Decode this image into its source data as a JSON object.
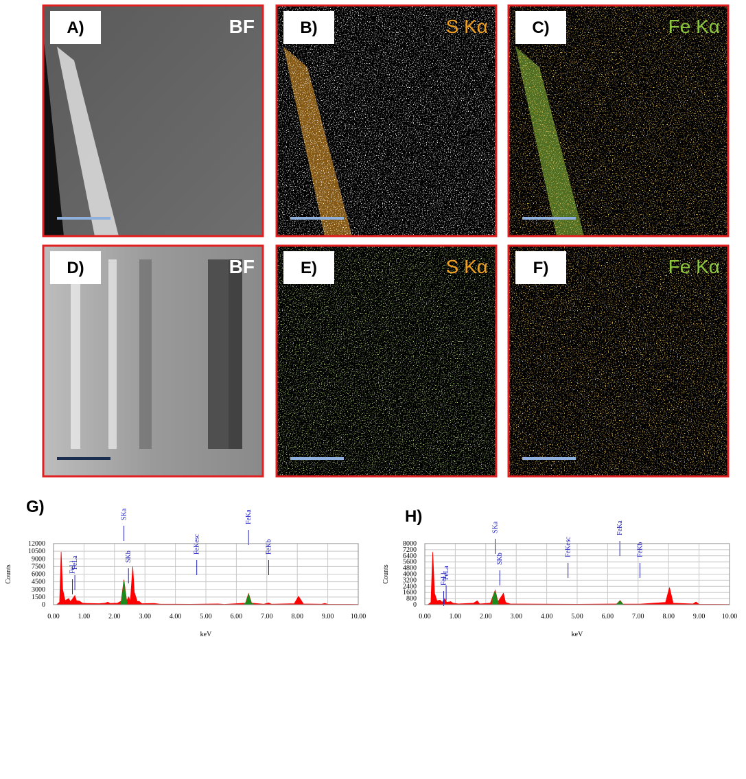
{
  "panels": [
    {
      "label": "A)",
      "channel": "BF",
      "color": "#ffffff"
    },
    {
      "label": "B)",
      "channel": "S Kα",
      "color": "#f0a020"
    },
    {
      "label": "C)",
      "channel": "Fe Kα",
      "color": "#8cc63f"
    },
    {
      "label": "D)",
      "channel": "BF",
      "color": "#ffffff"
    },
    {
      "label": "E)",
      "channel": "S Kα",
      "color": "#f0a020"
    },
    {
      "label": "F)",
      "channel": "Fe Kα",
      "color": "#8cc63f"
    }
  ],
  "chart_data": [
    {
      "type": "area",
      "title": "G)",
      "x_label": "keV",
      "y_label": "Counts",
      "x": [
        0.1,
        0.2,
        0.25,
        0.3,
        0.38,
        0.5,
        0.55,
        0.62,
        0.7,
        0.75,
        0.85,
        0.95,
        1.1,
        1.5,
        1.7,
        1.78,
        1.85,
        2.1,
        2.22,
        2.31,
        2.4,
        2.47,
        2.52,
        2.6,
        2.65,
        2.75,
        2.8,
        2.9,
        3.3,
        3.5,
        4.5,
        5.4,
        5.6,
        6.3,
        6.4,
        6.5,
        6.9,
        7.06,
        7.15,
        7.9,
        8.04,
        8.2,
        8.8,
        8.9,
        9.0,
        10
      ],
      "values": [
        0,
        500,
        10400,
        3000,
        800,
        1200,
        600,
        1100,
        1800,
        800,
        700,
        300,
        250,
        200,
        300,
        500,
        250,
        300,
        700,
        4900,
        800,
        1500,
        600,
        7500,
        2500,
        600,
        700,
        200,
        250,
        100,
        80,
        150,
        60,
        300,
        2200,
        300,
        100,
        350,
        100,
        200,
        1650,
        150,
        100,
        250,
        80,
        50
      ],
      "color": "#ff0000",
      "highlight_color": "#1a8a1a",
      "highlights": [
        [
          2.2,
          2.42
        ],
        [
          6.25,
          6.55
        ]
      ],
      "peak_labels": [
        {
          "label": "FeLl",
          "x": 0.62
        },
        {
          "label": "FeLa",
          "x": 0.7
        },
        {
          "label": "SKa",
          "x": 2.31
        },
        {
          "label": "SKb",
          "x": 2.46
        },
        {
          "label": "FeKesc",
          "x": 4.7
        },
        {
          "label": "FeKa",
          "x": 6.4
        },
        {
          "label": "FeKb",
          "x": 7.06
        }
      ],
      "xlim": [
        0,
        10
      ],
      "ylim": [
        0,
        12000
      ],
      "xticks": [
        {
          "value": 0,
          "label": "0.00"
        },
        {
          "value": 1,
          "label": "1.00"
        },
        {
          "value": 2,
          "label": "2.00"
        },
        {
          "value": 3,
          "label": "3.00"
        },
        {
          "value": 4,
          "label": "4.00"
        },
        {
          "value": 5,
          "label": "5.00"
        },
        {
          "value": 6,
          "label": "6.00"
        },
        {
          "value": 7,
          "label": "7.00"
        },
        {
          "value": 8,
          "label": "8.00"
        },
        {
          "value": 9,
          "label": "9.00"
        },
        {
          "value": 10,
          "label": "10.00"
        }
      ],
      "yticks": [
        0,
        1500,
        3000,
        4500,
        6000,
        7500,
        9000,
        10500,
        12000
      ],
      "grid": true
    },
    {
      "type": "area",
      "title": "H)",
      "x_label": "keV",
      "y_label": "Counts",
      "x": [
        0.1,
        0.2,
        0.26,
        0.32,
        0.4,
        0.5,
        0.57,
        0.65,
        0.72,
        0.85,
        0.92,
        1.1,
        1.6,
        1.72,
        1.8,
        2.15,
        2.31,
        2.4,
        2.47,
        2.58,
        2.65,
        2.8,
        5,
        6.3,
        6.41,
        6.5,
        7.06,
        7.9,
        8.03,
        8.15,
        8.8,
        8.9,
        9.0,
        10
      ],
      "values": [
        0,
        300,
        6900,
        1500,
        500,
        600,
        300,
        800,
        300,
        400,
        200,
        100,
        200,
        500,
        100,
        200,
        1900,
        400,
        800,
        1500,
        300,
        100,
        50,
        100,
        550,
        80,
        80,
        300,
        2250,
        200,
        100,
        350,
        50,
        30
      ],
      "color": "#ff0000",
      "highlight_color": "#1a8a1a",
      "highlights": [
        [
          2.2,
          2.42
        ],
        [
          6.28,
          6.53
        ]
      ],
      "peak_labels": [
        {
          "label": "FeLl",
          "x": 0.62
        },
        {
          "label": "FeLa",
          "x": 0.7
        },
        {
          "label": "SKa",
          "x": 2.31
        },
        {
          "label": "SKb",
          "x": 2.46
        },
        {
          "label": "FeKesc",
          "x": 4.7
        },
        {
          "label": "FeKa",
          "x": 6.4
        },
        {
          "label": "FeKb",
          "x": 7.06
        }
      ],
      "xlim": [
        0,
        10
      ],
      "ylim": [
        0,
        8000
      ],
      "xticks": [
        {
          "value": 0,
          "label": "0.00"
        },
        {
          "value": 1,
          "label": "1.00"
        },
        {
          "value": 2,
          "label": "2.00"
        },
        {
          "value": 3,
          "label": "3.00"
        },
        {
          "value": 4,
          "label": "4.00"
        },
        {
          "value": 5,
          "label": "5.00"
        },
        {
          "value": 6,
          "label": "6.00"
        },
        {
          "value": 7,
          "label": "7.00"
        },
        {
          "value": 8,
          "label": "8.00"
        },
        {
          "value": 9,
          "label": "9.00"
        },
        {
          "value": 10,
          "label": "10.00"
        }
      ],
      "yticks": [
        0,
        800,
        1600,
        2400,
        3200,
        4000,
        4800,
        5600,
        6400,
        7200,
        8000
      ],
      "grid": true
    }
  ]
}
